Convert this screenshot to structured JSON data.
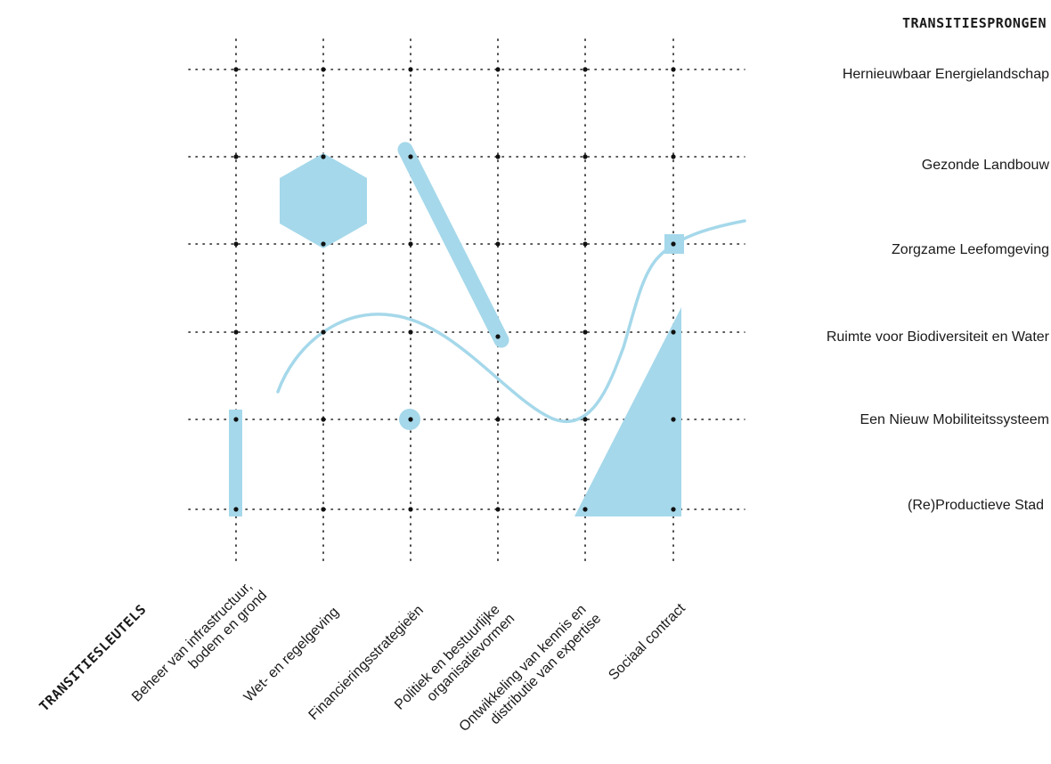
{
  "header": {
    "rows_title": "TRANSITIESPRONGEN",
    "cols_title": "TRANSITIESLEUTELS"
  },
  "rows": [
    "Hernieuwbaar Energielandschap",
    "Gezonde Landbouw",
    "Zorgzame Leefomgeving",
    "Ruimte voor Biodiversiteit en Water",
    "Een Nieuw Mobiliteitssysteem",
    "(Re)Productieve Stad"
  ],
  "columns": [
    {
      "line1": "Beheer van infrastructuur,",
      "line2": "bodem en grond"
    },
    {
      "line1": "Wet- en regelgeving",
      "line2": ""
    },
    {
      "line1": "Financieringsstrategieën",
      "line2": ""
    },
    {
      "line1": "Politiek en bestuurlijke",
      "line2": "organisatievormen"
    },
    {
      "line1": "Ontwikkeling van kennis en",
      "line2": "distributie van expertise"
    },
    {
      "line1": "Sociaal contract",
      "line2": ""
    }
  ],
  "colors": {
    "shape_fill": "#a5d8ea",
    "grid": "#222222",
    "node": "#111111"
  }
}
